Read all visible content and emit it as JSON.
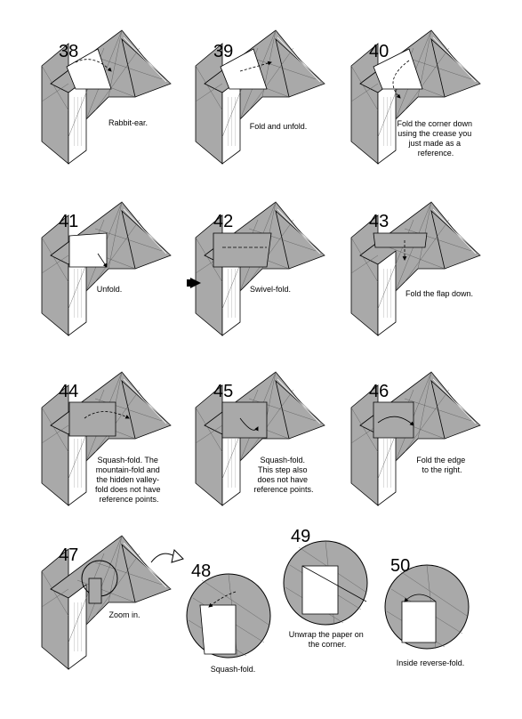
{
  "steps": [
    {
      "number": "38",
      "caption": [
        "Rabbit-ear."
      ]
    },
    {
      "number": "39",
      "caption": [
        "Fold and unfold."
      ]
    },
    {
      "number": "40",
      "caption": [
        "Fold the corner down",
        "using the crease you",
        "just made as a",
        "reference."
      ]
    },
    {
      "number": "41",
      "caption": [
        "Unfold."
      ]
    },
    {
      "number": "42",
      "caption": [
        "Swivel-fold."
      ]
    },
    {
      "number": "43",
      "caption": [
        "Fold the flap down."
      ]
    },
    {
      "number": "44",
      "caption": [
        "Squash-fold. The",
        "mountain-fold and",
        "the hidden valley-",
        "fold does not have",
        "reference points."
      ]
    },
    {
      "number": "45",
      "caption": [
        "Squash-fold.",
        "This step also",
        "does not have",
        "reference points."
      ]
    },
    {
      "number": "46",
      "caption": [
        "Fold the edge",
        "to the right."
      ]
    },
    {
      "number": "47",
      "caption": [
        "Zoom in."
      ]
    },
    {
      "number": "48",
      "caption": [
        "Squash-fold."
      ]
    },
    {
      "number": "49",
      "caption": [
        "Unwrap the paper on",
        "the corner."
      ]
    },
    {
      "number": "50",
      "caption": [
        "Inside reverse-fold."
      ]
    }
  ],
  "colors": {
    "paper_gray": "#a9a9a9",
    "paper_white": "#ffffff",
    "line": "#000000"
  }
}
